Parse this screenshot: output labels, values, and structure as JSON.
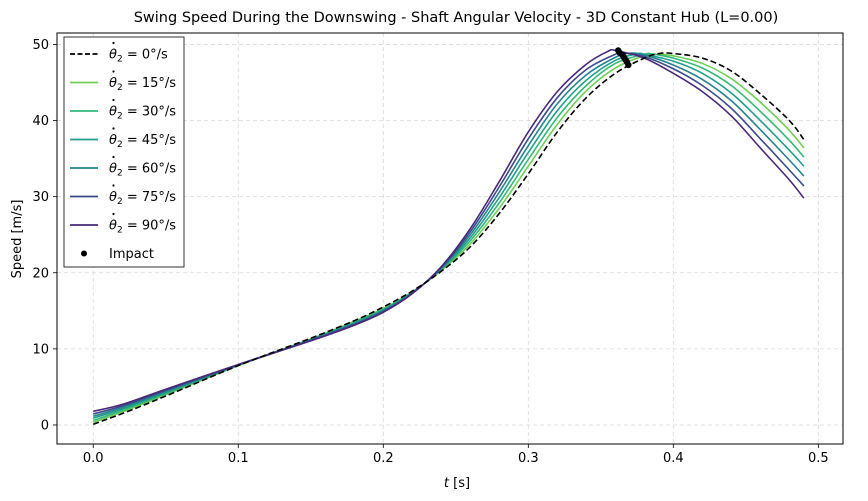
{
  "chart_data": {
    "type": "line",
    "title": "Swing Speed During the Downswing - Shaft Angular Velocity - 3D Constant Hub (L=0.00)",
    "xlabel_var": "t",
    "xlabel_unit": " [s]",
    "ylabel": "Speed [m/s]",
    "xlim": [
      -0.025,
      0.517
    ],
    "ylim": [
      -2.5,
      51.5
    ],
    "xticks": [
      0.0,
      0.1,
      0.2,
      0.3,
      0.4,
      0.5
    ],
    "xtick_labels": [
      "0.0",
      "0.1",
      "0.2",
      "0.3",
      "0.4",
      "0.5"
    ],
    "yticks": [
      0,
      10,
      20,
      30,
      40,
      50
    ],
    "ytick_labels": [
      "0",
      "10",
      "20",
      "30",
      "40",
      "50"
    ],
    "grid": true,
    "legend_position": "upper-left",
    "series": [
      {
        "name": "= 0°/s",
        "color": "#000000",
        "dashed": true,
        "points": [
          [
            0,
            0.1
          ],
          [
            0.02,
            1.5
          ],
          [
            0.05,
            3.8
          ],
          [
            0.1,
            7.8
          ],
          [
            0.15,
            11.4
          ],
          [
            0.18,
            13.7
          ],
          [
            0.2,
            15.5
          ],
          [
            0.22,
            17.6
          ],
          [
            0.24,
            20.2
          ],
          [
            0.26,
            23.4
          ],
          [
            0.28,
            27.8
          ],
          [
            0.3,
            33.0
          ],
          [
            0.32,
            38.5
          ],
          [
            0.34,
            43.0
          ],
          [
            0.36,
            46.2
          ],
          [
            0.38,
            48.2
          ],
          [
            0.39,
            48.8
          ],
          [
            0.4,
            48.8
          ],
          [
            0.42,
            48.2
          ],
          [
            0.44,
            46.5
          ],
          [
            0.46,
            43.5
          ],
          [
            0.48,
            40.0
          ],
          [
            0.49,
            37.5
          ]
        ],
        "impact": [
          0.369,
          47.3
        ]
      },
      {
        "name": "= 15°/s",
        "color": "#6ece58",
        "dashed": false,
        "points": [
          [
            0,
            0.35
          ],
          [
            0.02,
            1.7
          ],
          [
            0.05,
            3.95
          ],
          [
            0.1,
            7.8
          ],
          [
            0.15,
            11.3
          ],
          [
            0.18,
            13.6
          ],
          [
            0.2,
            15.3
          ],
          [
            0.22,
            17.5
          ],
          [
            0.24,
            20.3
          ],
          [
            0.26,
            23.8
          ],
          [
            0.28,
            28.5
          ],
          [
            0.3,
            34.0
          ],
          [
            0.32,
            39.5
          ],
          [
            0.34,
            43.9
          ],
          [
            0.36,
            46.9
          ],
          [
            0.38,
            48.5
          ],
          [
            0.39,
            48.7
          ],
          [
            0.4,
            48.5
          ],
          [
            0.42,
            47.5
          ],
          [
            0.44,
            45.5
          ],
          [
            0.46,
            42.4
          ],
          [
            0.48,
            38.7
          ],
          [
            0.49,
            36.4
          ]
        ],
        "impact": [
          0.368,
          47.7
        ]
      },
      {
        "name": "= 30°/s",
        "color": "#35b779",
        "dashed": false,
        "points": [
          [
            0,
            0.6
          ],
          [
            0.02,
            1.9
          ],
          [
            0.05,
            4.1
          ],
          [
            0.1,
            7.85
          ],
          [
            0.15,
            11.25
          ],
          [
            0.18,
            13.5
          ],
          [
            0.2,
            15.2
          ],
          [
            0.22,
            17.45
          ],
          [
            0.24,
            20.4
          ],
          [
            0.26,
            24.2
          ],
          [
            0.28,
            29.2
          ],
          [
            0.3,
            34.9
          ],
          [
            0.32,
            40.4
          ],
          [
            0.34,
            44.6
          ],
          [
            0.36,
            47.5
          ],
          [
            0.38,
            48.7
          ],
          [
            0.385,
            48.75
          ],
          [
            0.4,
            48.2
          ],
          [
            0.42,
            46.9
          ],
          [
            0.44,
            44.6
          ],
          [
            0.46,
            41.2
          ],
          [
            0.48,
            37.4
          ],
          [
            0.49,
            35.2
          ]
        ],
        "impact": [
          0.367,
          48.0
        ]
      },
      {
        "name": "= 45°/s",
        "color": "#1f9e89",
        "dashed": false,
        "points": [
          [
            0,
            0.9
          ],
          [
            0.02,
            2.1
          ],
          [
            0.05,
            4.25
          ],
          [
            0.1,
            7.85
          ],
          [
            0.15,
            11.2
          ],
          [
            0.18,
            13.4
          ],
          [
            0.2,
            15.1
          ],
          [
            0.22,
            17.4
          ],
          [
            0.24,
            20.5
          ],
          [
            0.26,
            24.6
          ],
          [
            0.28,
            29.9
          ],
          [
            0.3,
            35.8
          ],
          [
            0.32,
            41.3
          ],
          [
            0.34,
            45.3
          ],
          [
            0.36,
            47.9
          ],
          [
            0.375,
            48.75
          ],
          [
            0.38,
            48.7
          ],
          [
            0.4,
            47.8
          ],
          [
            0.42,
            46.2
          ],
          [
            0.44,
            43.6
          ],
          [
            0.46,
            40.0
          ],
          [
            0.48,
            36.1
          ],
          [
            0.49,
            34.0
          ]
        ],
        "impact": [
          0.366,
          48.3
        ]
      },
      {
        "name": "= 60°/s",
        "color": "#26828e",
        "dashed": false,
        "points": [
          [
            0,
            1.15
          ],
          [
            0.02,
            2.3
          ],
          [
            0.05,
            4.4
          ],
          [
            0.1,
            7.9
          ],
          [
            0.15,
            11.15
          ],
          [
            0.18,
            13.3
          ],
          [
            0.2,
            15.0
          ],
          [
            0.22,
            17.35
          ],
          [
            0.24,
            20.6
          ],
          [
            0.26,
            25.0
          ],
          [
            0.28,
            30.6
          ],
          [
            0.3,
            36.7
          ],
          [
            0.32,
            42.2
          ],
          [
            0.34,
            46.0
          ],
          [
            0.36,
            48.3
          ],
          [
            0.37,
            48.85
          ],
          [
            0.38,
            48.6
          ],
          [
            0.4,
            47.3
          ],
          [
            0.42,
            45.4
          ],
          [
            0.44,
            42.6
          ],
          [
            0.46,
            38.8
          ],
          [
            0.48,
            34.8
          ],
          [
            0.49,
            32.7
          ]
        ],
        "impact": [
          0.365,
          48.6
        ]
      },
      {
        "name": "= 75°/s",
        "color": "#3e4989",
        "dashed": false,
        "points": [
          [
            0,
            1.45
          ],
          [
            0.02,
            2.5
          ],
          [
            0.05,
            4.55
          ],
          [
            0.1,
            7.9
          ],
          [
            0.15,
            11.1
          ],
          [
            0.18,
            13.2
          ],
          [
            0.2,
            14.9
          ],
          [
            0.22,
            17.3
          ],
          [
            0.24,
            20.7
          ],
          [
            0.26,
            25.4
          ],
          [
            0.28,
            31.3
          ],
          [
            0.3,
            37.6
          ],
          [
            0.32,
            43.0
          ],
          [
            0.34,
            46.7
          ],
          [
            0.36,
            48.7
          ],
          [
            0.365,
            48.9
          ],
          [
            0.38,
            48.4
          ],
          [
            0.4,
            46.8
          ],
          [
            0.42,
            44.6
          ],
          [
            0.44,
            41.6
          ],
          [
            0.46,
            37.6
          ],
          [
            0.48,
            33.5
          ],
          [
            0.49,
            31.4
          ]
        ],
        "impact": [
          0.363,
          48.9
        ]
      },
      {
        "name": "= 90°/s",
        "color": "#482878",
        "dashed": false,
        "points": [
          [
            0,
            1.8
          ],
          [
            0.02,
            2.7
          ],
          [
            0.05,
            4.7
          ],
          [
            0.1,
            7.95
          ],
          [
            0.15,
            11.05
          ],
          [
            0.18,
            13.1
          ],
          [
            0.2,
            14.8
          ],
          [
            0.22,
            17.25
          ],
          [
            0.24,
            20.8
          ],
          [
            0.26,
            25.8
          ],
          [
            0.28,
            32.0
          ],
          [
            0.3,
            38.5
          ],
          [
            0.32,
            43.8
          ],
          [
            0.34,
            47.4
          ],
          [
            0.355,
            49.1
          ],
          [
            0.36,
            49.2
          ],
          [
            0.38,
            48.2
          ],
          [
            0.4,
            46.2
          ],
          [
            0.42,
            43.8
          ],
          [
            0.44,
            40.6
          ],
          [
            0.46,
            36.4
          ],
          [
            0.48,
            32.2
          ],
          [
            0.49,
            29.8
          ]
        ],
        "impact": [
          0.362,
          49.2
        ]
      }
    ],
    "impact_label": "Impact"
  }
}
